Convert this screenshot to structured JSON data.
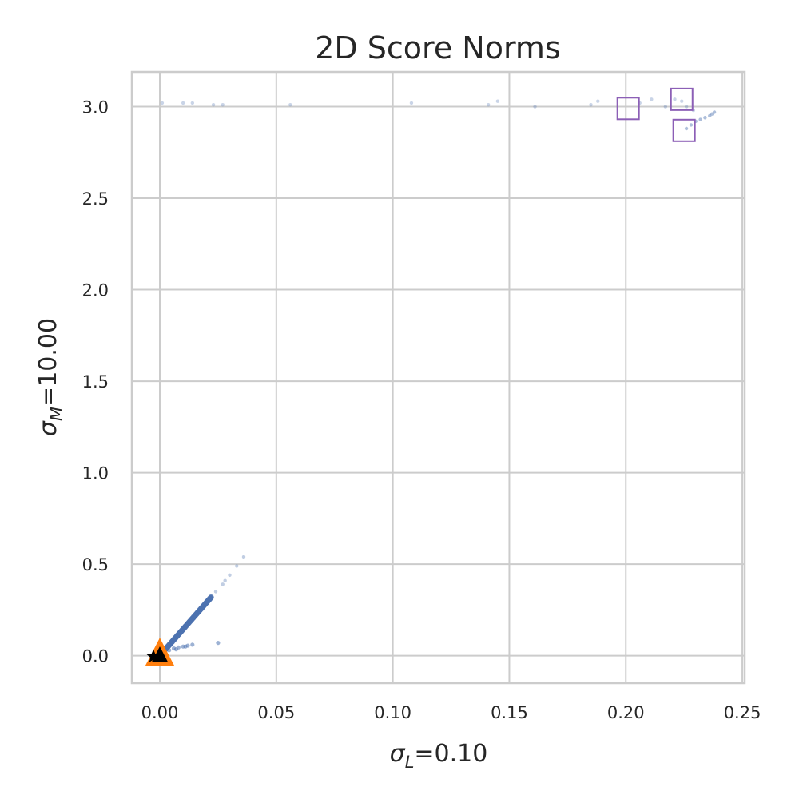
{
  "chart_data": {
    "type": "scatter",
    "title": "2D Score Norms",
    "xlabel": {
      "symbol": "σ",
      "subscript": "L",
      "value_text": "=0.10"
    },
    "ylabel": {
      "symbol": "σ",
      "subscript": "M",
      "value_text": "=10.00"
    },
    "xlim": [
      -0.012,
      0.251
    ],
    "ylim": [
      -0.15,
      3.19
    ],
    "grid": true,
    "xticks": [
      0.0,
      0.05,
      0.1,
      0.15,
      0.2,
      0.25
    ],
    "xtick_labels": [
      "0.00",
      "0.05",
      "0.10",
      "0.15",
      "0.20",
      "0.25"
    ],
    "yticks": [
      0.0,
      0.5,
      1.0,
      1.5,
      2.0,
      2.5,
      3.0
    ],
    "ytick_labels": [
      "0.0",
      "0.5",
      "1.0",
      "1.5",
      "2.0",
      "2.5",
      "3.0"
    ],
    "colors": {
      "scatter": "#4c72b0",
      "square": "#8c5fb6",
      "triangle": "#ff7f0e",
      "star": "#000000",
      "grid": "#cccccc",
      "frame": "#cccccc"
    },
    "scatter_points": {
      "diagonal_band": {
        "x_range": [
          0.0,
          0.022
        ],
        "slope": 14.5,
        "count": 90
      },
      "diagonal_sparse": [
        [
          0.024,
          0.35
        ],
        [
          0.027,
          0.39
        ],
        [
          0.03,
          0.44
        ],
        [
          0.033,
          0.49
        ],
        [
          0.036,
          0.54
        ],
        [
          0.028,
          0.41
        ]
      ],
      "lower_band": [
        [
          0.004,
          0.03
        ],
        [
          0.006,
          0.04
        ],
        [
          0.008,
          0.045
        ],
        [
          0.01,
          0.05
        ],
        [
          0.012,
          0.055
        ],
        [
          0.014,
          0.06
        ],
        [
          0.025,
          0.07
        ],
        [
          0.007,
          0.035
        ],
        [
          0.011,
          0.05
        ]
      ],
      "top_row": [
        [
          0.001,
          3.02
        ],
        [
          0.01,
          3.02
        ],
        [
          0.014,
          3.02
        ],
        [
          0.023,
          3.01
        ],
        [
          0.027,
          3.01
        ],
        [
          0.056,
          3.01
        ],
        [
          0.108,
          3.02
        ],
        [
          0.141,
          3.01
        ],
        [
          0.145,
          3.03
        ],
        [
          0.161,
          3.0
        ],
        [
          0.185,
          3.01
        ],
        [
          0.188,
          3.03
        ],
        [
          0.206,
          3.02
        ],
        [
          0.211,
          3.04
        ],
        [
          0.217,
          3.0
        ],
        [
          0.221,
          3.04
        ],
        [
          0.224,
          3.03
        ],
        [
          0.226,
          3.0
        ],
        [
          0.229,
          2.98
        ]
      ],
      "right_curve": [
        [
          0.226,
          2.88
        ],
        [
          0.228,
          2.9
        ],
        [
          0.23,
          2.92
        ],
        [
          0.232,
          2.93
        ],
        [
          0.234,
          2.94
        ],
        [
          0.236,
          2.95
        ],
        [
          0.237,
          2.96
        ],
        [
          0.238,
          2.97
        ]
      ]
    },
    "squares": [
      [
        0.201,
        2.99
      ],
      [
        0.224,
        3.04
      ],
      [
        0.225,
        2.87
      ]
    ],
    "triangle": [
      0.0,
      0.0
    ],
    "star": [
      0.0,
      0.0
    ]
  }
}
